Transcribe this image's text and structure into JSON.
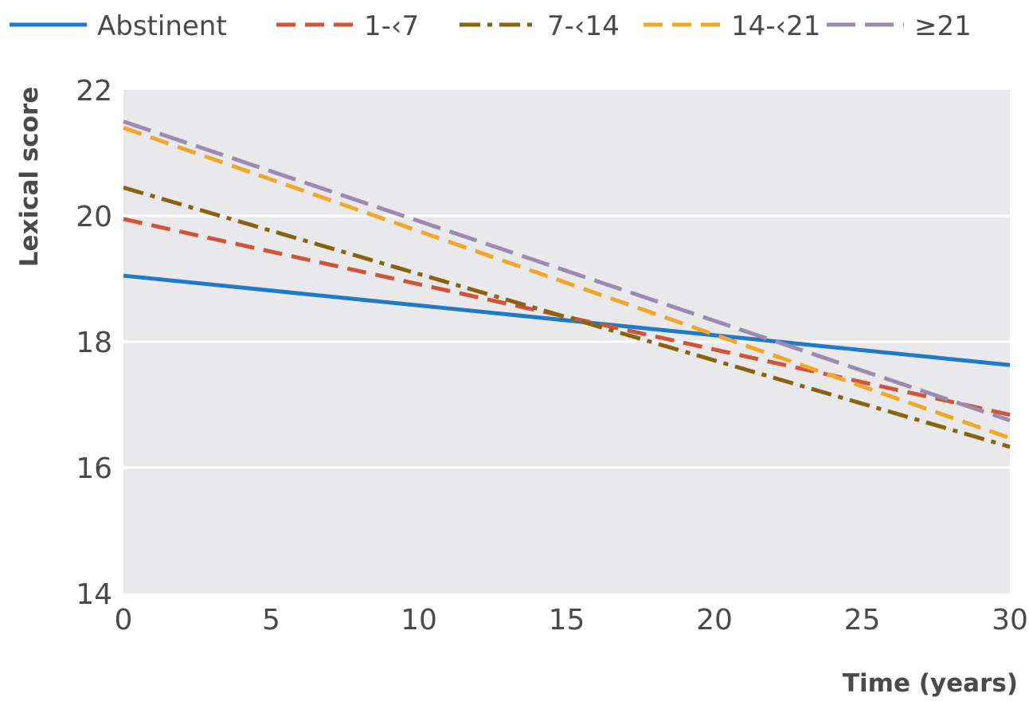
{
  "chart_data": {
    "type": "line",
    "xlabel": "Time (years)",
    "ylabel": "Lexical score",
    "xlim": [
      0,
      30
    ],
    "ylim": [
      14,
      22
    ],
    "x_ticks": [
      "0",
      "5",
      "10",
      "15",
      "20",
      "25",
      "30"
    ],
    "y_ticks": [
      "14",
      "16",
      "18",
      "20",
      "22"
    ],
    "grid": "horizontal",
    "legend_position": "top",
    "background_color": "#e9e9eb",
    "series": [
      {
        "name": "Abstinent",
        "color": "#1f7ac7",
        "dash": "solid",
        "x": [
          0,
          30
        ],
        "y": [
          19.05,
          17.63
        ]
      },
      {
        "name": "1-‹7",
        "color": "#d1533a",
        "dash": "dashed",
        "x": [
          0,
          30
        ],
        "y": [
          19.95,
          16.84
        ]
      },
      {
        "name": "7-‹14",
        "color": "#8a6212",
        "dash": "dashdot",
        "x": [
          0,
          30
        ],
        "y": [
          20.45,
          16.33
        ]
      },
      {
        "name": "14-‹21",
        "color": "#f2a72a",
        "dash": "dashed",
        "x": [
          0,
          30
        ],
        "y": [
          21.4,
          16.47
        ]
      },
      {
        "name": "≥21",
        "color": "#9b8bb0",
        "dash": "longdash",
        "x": [
          0,
          30
        ],
        "y": [
          21.5,
          16.75
        ]
      }
    ]
  }
}
